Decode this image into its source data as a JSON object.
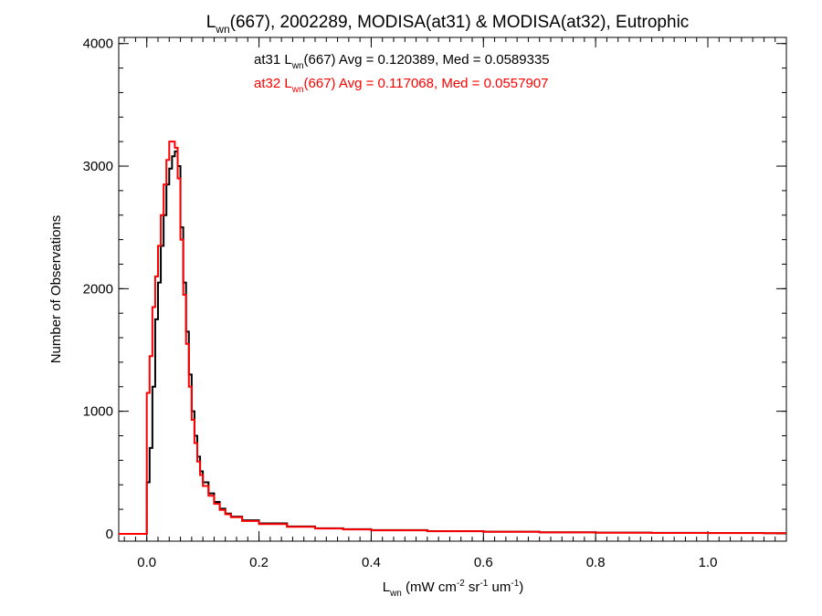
{
  "chart_data": {
    "type": "histogram",
    "title": {
      "pre": "L",
      "sub": "wn",
      "post": "(667), 2002289, MODISA(at31) & MODISA(at32), Eutrophic"
    },
    "xlabel": {
      "l": "L",
      "l_sub": "wn",
      "a": " (mW cm",
      "a_sup": "-2",
      "b": " sr",
      "b_sup": "-1",
      "c": " um",
      "c_sup": "-1",
      "d": ")"
    },
    "ylabel": "Number of Observations",
    "xlim": [
      -0.05,
      1.14
    ],
    "ylim": [
      -60,
      4050
    ],
    "xticks": [
      0.0,
      0.2,
      0.4,
      0.6,
      0.8,
      1.0
    ],
    "xtick_labels": [
      "0.0",
      "0.2",
      "0.4",
      "0.6",
      "0.8",
      "1.0"
    ],
    "xminor_step": 0.02,
    "yticks": [
      0,
      1000,
      2000,
      3000,
      4000
    ],
    "ytick_labels": [
      "0",
      "1000",
      "2000",
      "3000",
      "4000"
    ],
    "yminor_step": 200,
    "grid": false,
    "legend": [
      {
        "pre": "at31 L",
        "sub": "wn",
        "post": "(667) Avg = 0.120389, Med = 0.0589335",
        "color": "#000000"
      },
      {
        "pre": "at32 L",
        "sub": "wn",
        "post": "(667) Avg = 0.117068, Med = 0.0557907",
        "color": "#ff0000"
      }
    ],
    "series": [
      {
        "name": "at31",
        "color": "#000000",
        "x": [
          -0.05,
          -0.03,
          -0.01,
          -0.001,
          0.0,
          0.005,
          0.01,
          0.015,
          0.02,
          0.025,
          0.03,
          0.035,
          0.04,
          0.045,
          0.05,
          0.055,
          0.06,
          0.065,
          0.07,
          0.075,
          0.08,
          0.085,
          0.09,
          0.095,
          0.1,
          0.11,
          0.12,
          0.13,
          0.14,
          0.15,
          0.17,
          0.2,
          0.25,
          0.3,
          0.35,
          0.4,
          0.5,
          0.6,
          0.7,
          0.8,
          0.9,
          1.0,
          1.1,
          1.14
        ],
        "y": [
          0,
          0,
          0,
          0,
          420,
          700,
          1200,
          1750,
          2050,
          2350,
          2600,
          2850,
          2980,
          3080,
          3120,
          3000,
          2500,
          2050,
          1650,
          1300,
          1000,
          800,
          630,
          510,
          420,
          330,
          260,
          205,
          165,
          140,
          110,
          85,
          60,
          45,
          38,
          30,
          22,
          17,
          13,
          10,
          8,
          7,
          5,
          5
        ]
      },
      {
        "name": "at32",
        "color": "#ff0000",
        "x": [
          -0.05,
          -0.03,
          -0.01,
          -0.001,
          0.0,
          0.005,
          0.01,
          0.015,
          0.02,
          0.025,
          0.03,
          0.035,
          0.04,
          0.045,
          0.05,
          0.055,
          0.06,
          0.065,
          0.07,
          0.075,
          0.08,
          0.085,
          0.09,
          0.095,
          0.1,
          0.11,
          0.12,
          0.13,
          0.14,
          0.15,
          0.17,
          0.2,
          0.25,
          0.3,
          0.35,
          0.4,
          0.5,
          0.6,
          0.7,
          0.8,
          0.9,
          1.0,
          1.1,
          1.14
        ],
        "y": [
          0,
          0,
          0,
          0,
          1150,
          1450,
          1850,
          2100,
          2350,
          2600,
          2850,
          3050,
          3200,
          3200,
          3150,
          2900,
          2400,
          1950,
          1550,
          1200,
          930,
          740,
          590,
          480,
          390,
          310,
          245,
          195,
          160,
          135,
          105,
          80,
          57,
          43,
          36,
          28,
          21,
          16,
          12,
          9,
          7,
          6,
          5,
          5
        ]
      }
    ]
  }
}
